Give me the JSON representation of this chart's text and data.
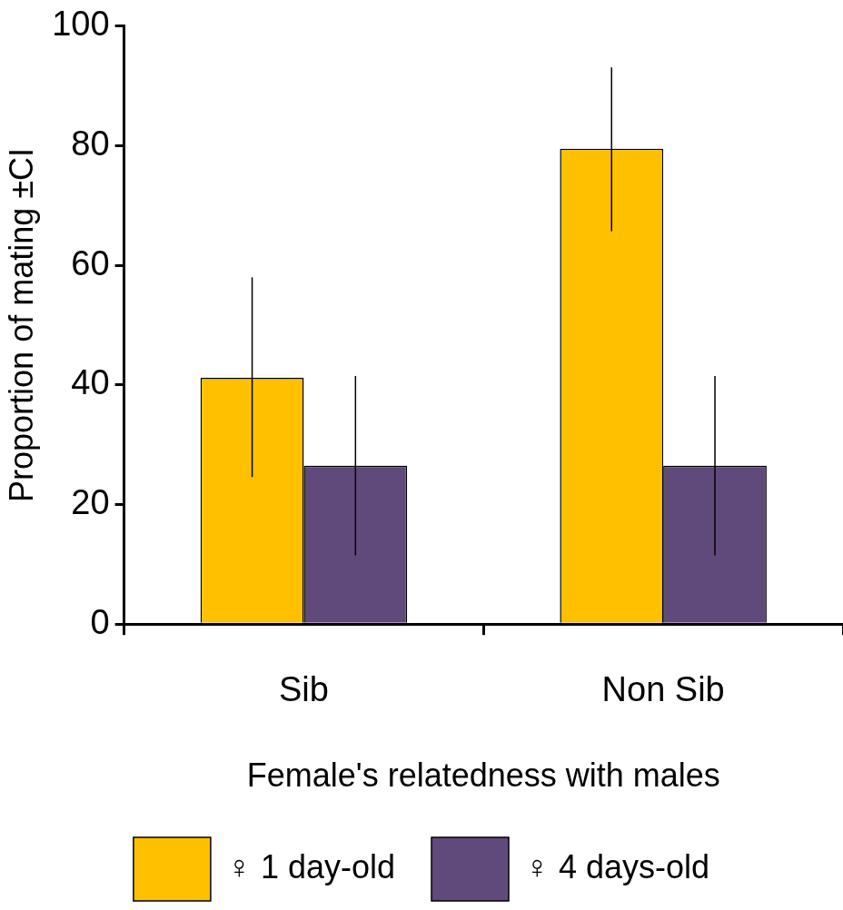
{
  "chart_data": {
    "type": "bar",
    "xlabel": "Female's relatedness with males",
    "ylabel": "Proportion of mating ±CI",
    "categories": [
      "Sib",
      "Non Sib"
    ],
    "series": [
      {
        "name": "♀ 1 day-old",
        "color": "#ffc000",
        "values": [
          41.2,
          79.5
        ],
        "errors": [
          [
            24.6,
            58.0
          ],
          [
            65.7,
            93.1
          ]
        ]
      },
      {
        "name": "♀ 4 days-old",
        "color": "#604a7b",
        "values": [
          26.5,
          26.5
        ],
        "errors": [
          [
            11.5,
            41.5
          ],
          [
            11.5,
            41.5
          ]
        ]
      }
    ],
    "ylim": [
      0,
      100
    ],
    "yticks": [
      0,
      20,
      40,
      60,
      80,
      100
    ],
    "grid": false,
    "legend": "bottom"
  }
}
